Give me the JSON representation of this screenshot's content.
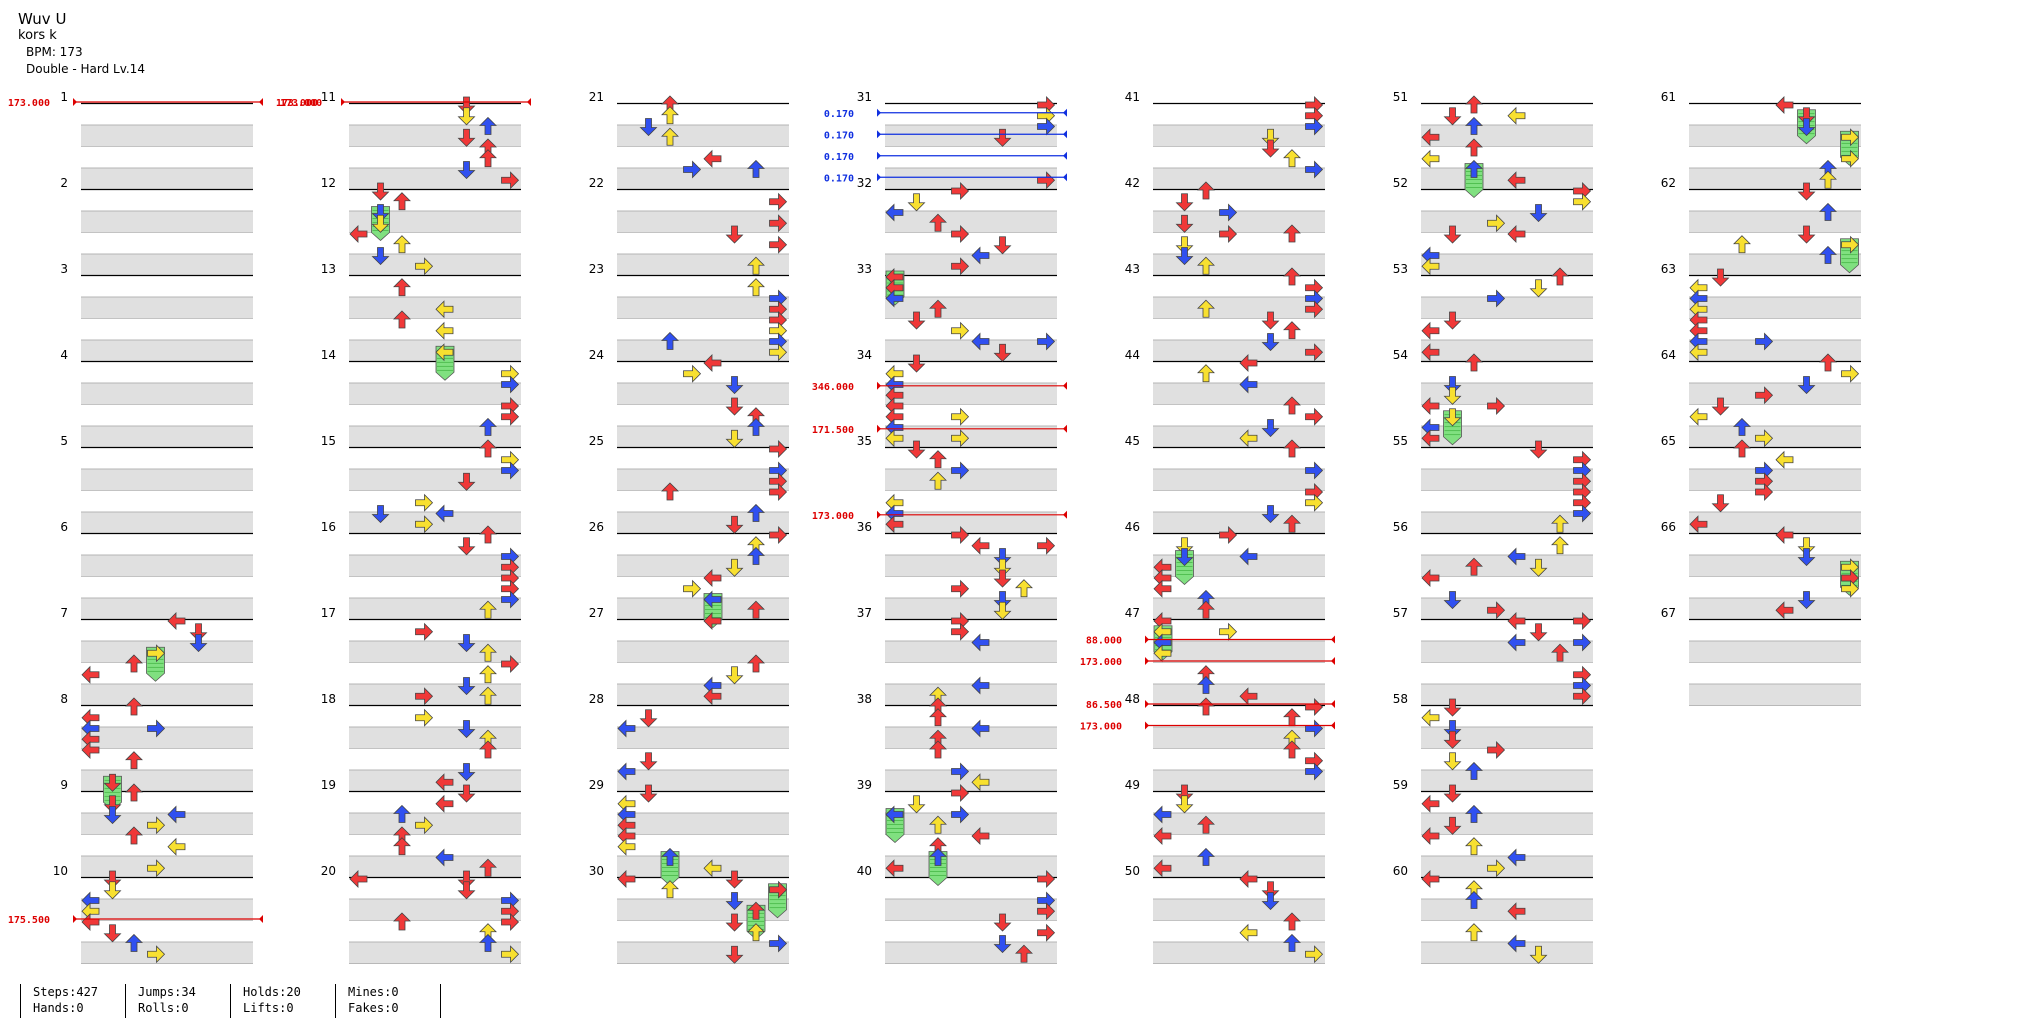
{
  "song": {
    "title": "Wuv U",
    "artist": "kors k",
    "bpm_label": "BPM: 173",
    "difficulty": "Double - Hard Lv.14"
  },
  "stats": {
    "steps": "Steps:427",
    "hands": "Hands:0",
    "jumps": "Jumps:34",
    "rolls": "Rolls:0",
    "holds": "Holds:20",
    "lifts": "Lifts:0",
    "mines": "Mines:0",
    "fakes": "Fakes:0"
  },
  "colors": {
    "red": "#f03838",
    "blue": "#3050f0",
    "yellow": "#f8e030",
    "green": "#80e080",
    "band": "#e0e0e0",
    "bpm_red": "#dd0000",
    "bpm_blue": "#1030e0"
  },
  "chart_data": {
    "type": "table",
    "columns": 7,
    "measures_per_column": 10,
    "total_measures": 67,
    "bpm_markers": [
      {
        "measure": 1,
        "position": 0,
        "label": "173.000",
        "label2": "173.000",
        "color": "red"
      },
      {
        "measure": 10,
        "position": 0.5,
        "label": "175.500",
        "color": "red"
      },
      {
        "measure": 11,
        "position": 0,
        "label": "173.000",
        "color": "red"
      },
      {
        "measure": 31,
        "position": 0.125,
        "label": "0.170",
        "color": "blue"
      },
      {
        "measure": 31,
        "position": 0.375,
        "label": "0.170",
        "color": "blue"
      },
      {
        "measure": 31,
        "position": 0.625,
        "label": "0.170",
        "color": "blue"
      },
      {
        "measure": 31,
        "position": 0.875,
        "label": "0.170",
        "color": "blue"
      },
      {
        "measure": 34,
        "position": 0.3,
        "label": "346.000",
        "color": "red"
      },
      {
        "measure": 34,
        "position": 0.8,
        "label": "171.500",
        "color": "red"
      },
      {
        "measure": 35,
        "position": 0.8,
        "label": "173.000",
        "color": "red"
      },
      {
        "measure": 47,
        "position": 0.25,
        "label": "88.000",
        "color": "red"
      },
      {
        "measure": 47,
        "position": 0.5,
        "label": "173.000",
        "color": "red"
      },
      {
        "measure": 48,
        "position": 0,
        "label": "86.500",
        "color": "red"
      },
      {
        "measure": 48,
        "position": 0.25,
        "label": "173.000",
        "color": "red"
      }
    ]
  }
}
